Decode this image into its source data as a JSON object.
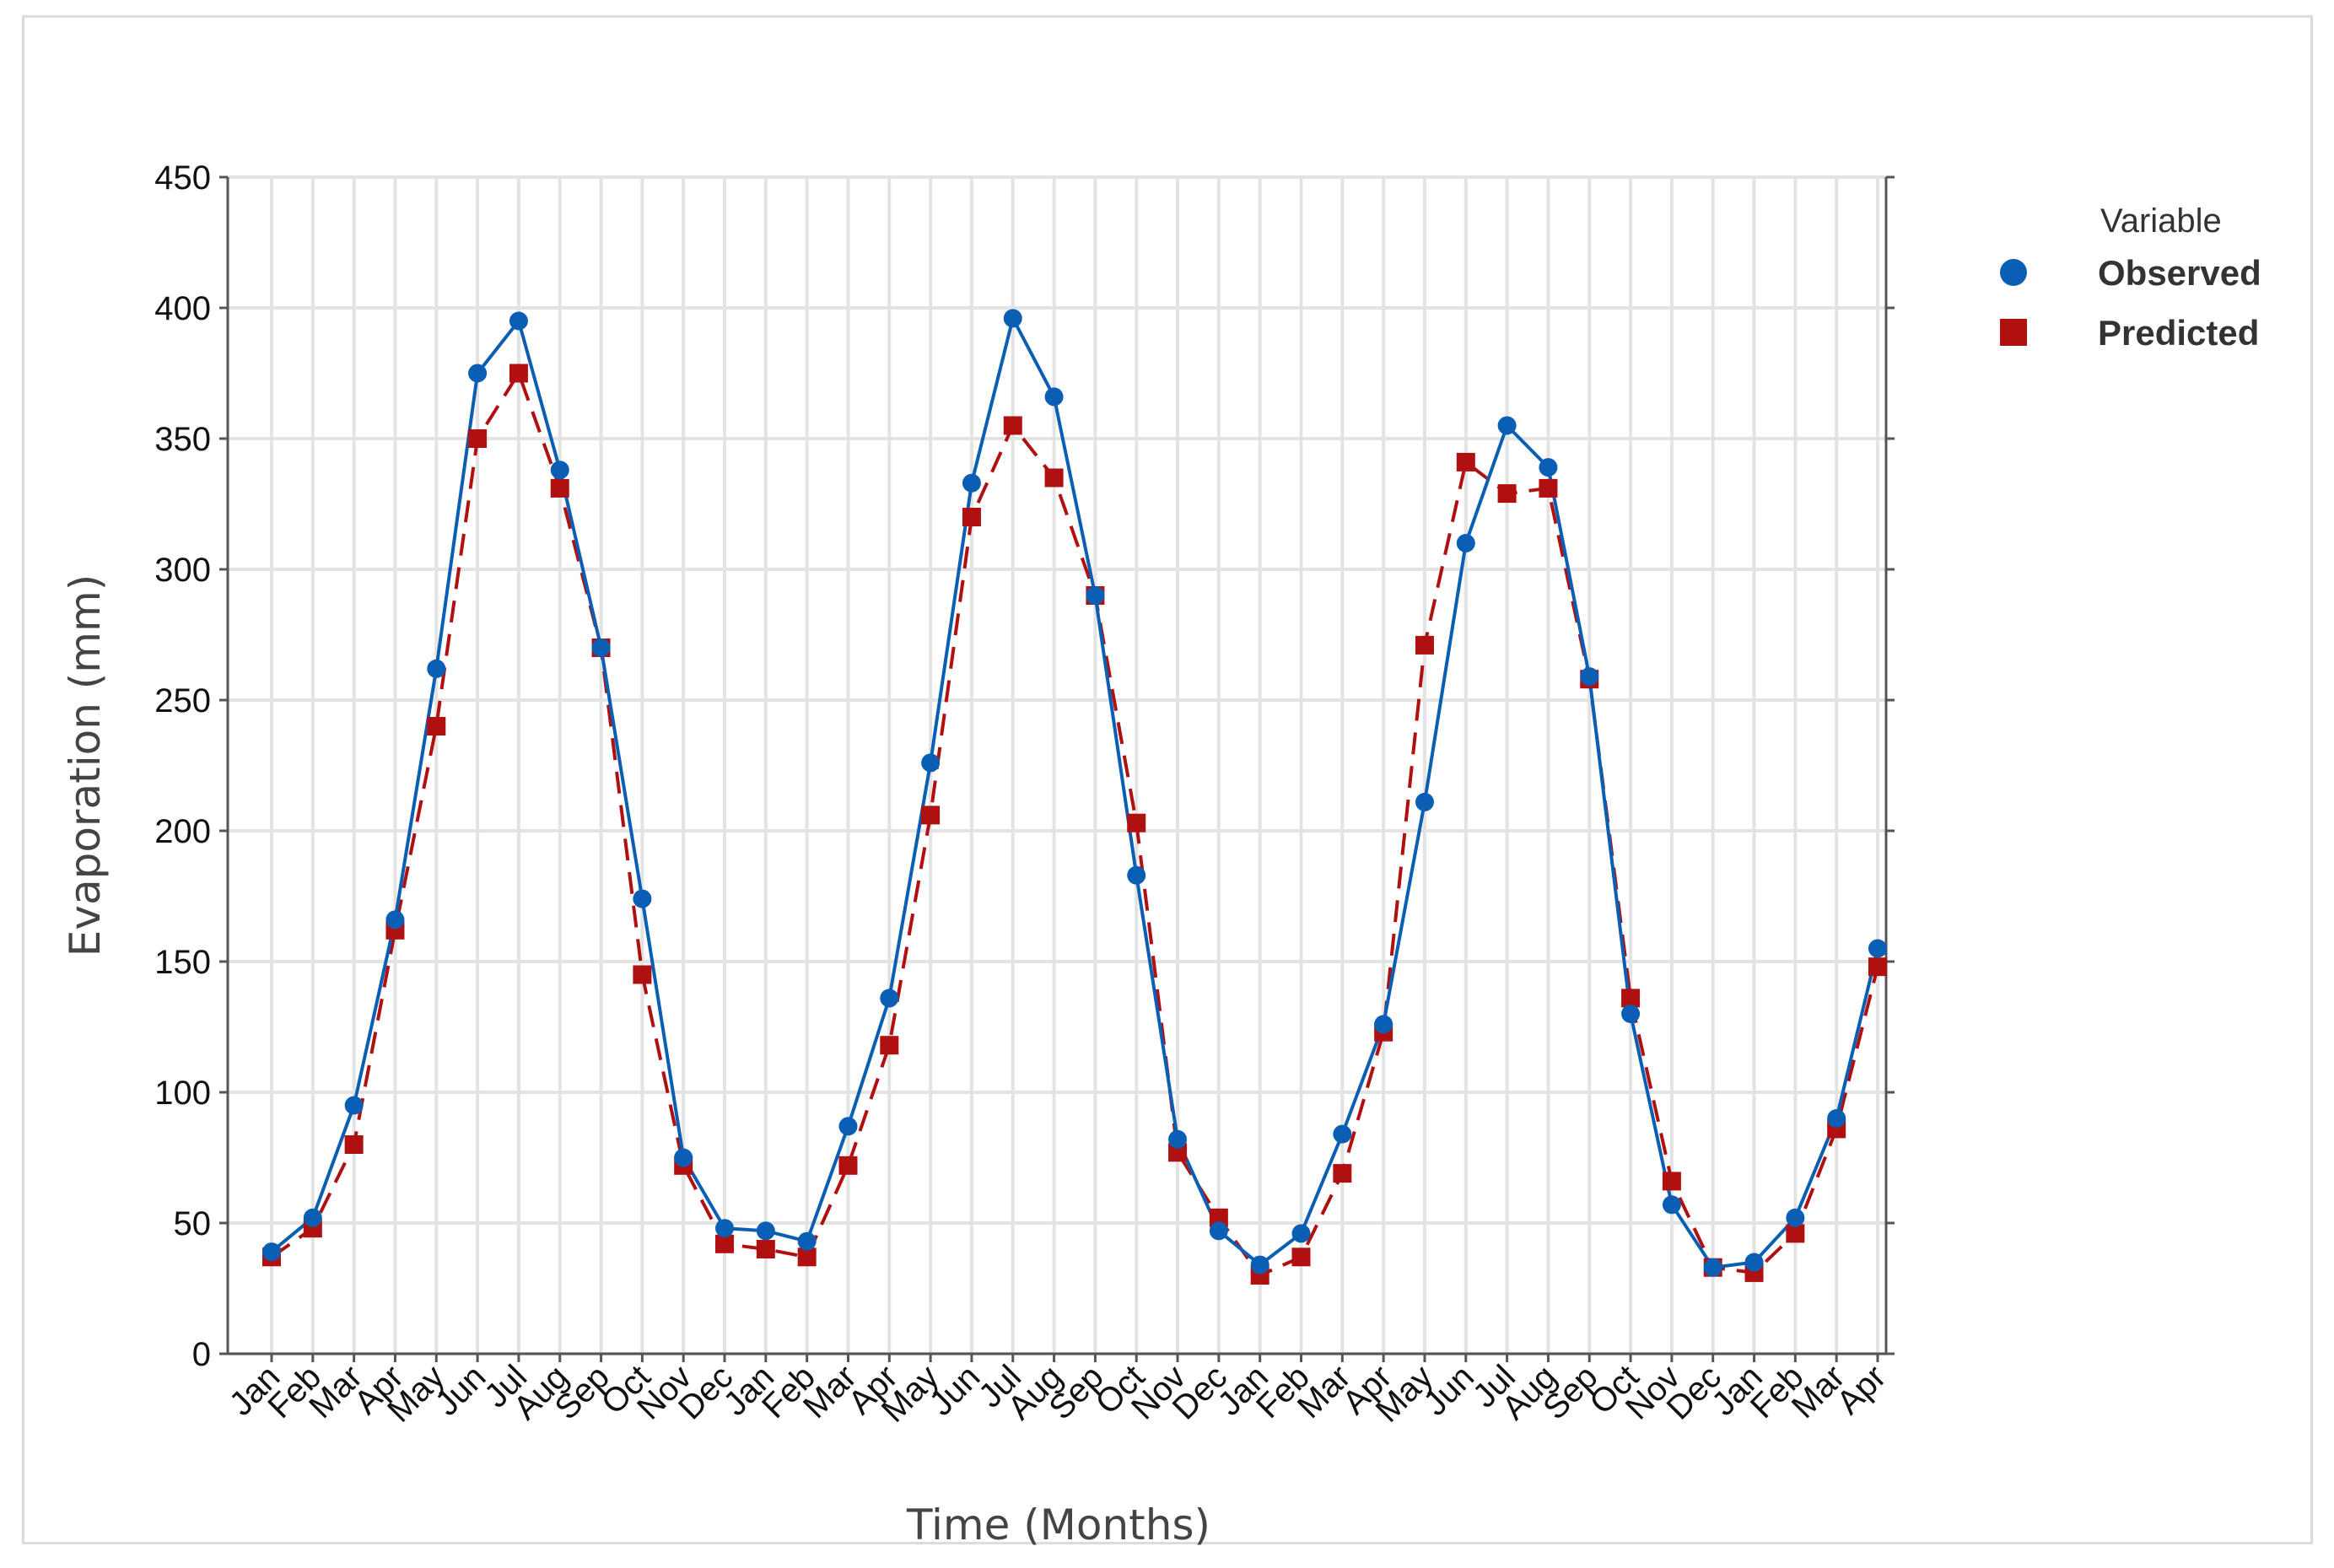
{
  "chart_data": {
    "type": "line",
    "xlabel": "Time (Months)",
    "ylabel": "Evaporation (mm)",
    "ylim": [
      0,
      450
    ],
    "yticks": [
      0,
      50,
      100,
      150,
      200,
      250,
      300,
      350,
      400,
      450
    ],
    "grid": true,
    "legend": {
      "title": "Variable",
      "position": "right"
    },
    "categories": [
      "Jan",
      "Feb",
      "Mar",
      "Apr",
      "May",
      "Jun",
      "Jul",
      "Aug",
      "Sep",
      "Oct",
      "Nov",
      "Dec",
      "Jan",
      "Feb",
      "Mar",
      "Apr",
      "May",
      "Jun",
      "Jul",
      "Aug",
      "Sep",
      "Oct",
      "Nov",
      "Dec",
      "Jan",
      "Feb",
      "Mar",
      "Apr",
      "May",
      "Jun",
      "Jul",
      "Aug",
      "Sep",
      "Oct",
      "Nov",
      "Dec",
      "Jan",
      "Feb",
      "Mar",
      "Apr"
    ],
    "series": [
      {
        "name": "Observed",
        "color": "#0a5fb4",
        "marker": "circle",
        "line": "solid",
        "values": [
          39,
          52,
          95,
          166,
          262,
          375,
          395,
          338,
          270,
          174,
          75,
          48,
          47,
          43,
          87,
          136,
          226,
          333,
          396,
          366,
          290,
          183,
          82,
          47,
          34,
          46,
          84,
          126,
          211,
          310,
          355,
          339,
          259,
          130,
          57,
          33,
          35,
          52,
          90,
          155
        ]
      },
      {
        "name": "Predicted",
        "color": "#b01010",
        "marker": "square",
        "line": "dashed",
        "values": [
          37,
          48,
          80,
          162,
          240,
          350,
          375,
          331,
          270,
          145,
          72,
          42,
          40,
          37,
          72,
          118,
          206,
          320,
          355,
          335,
          290,
          203,
          77,
          52,
          30,
          37,
          69,
          123,
          271,
          341,
          329,
          331,
          258,
          136,
          66,
          33,
          31,
          46,
          86,
          148
        ]
      }
    ]
  }
}
